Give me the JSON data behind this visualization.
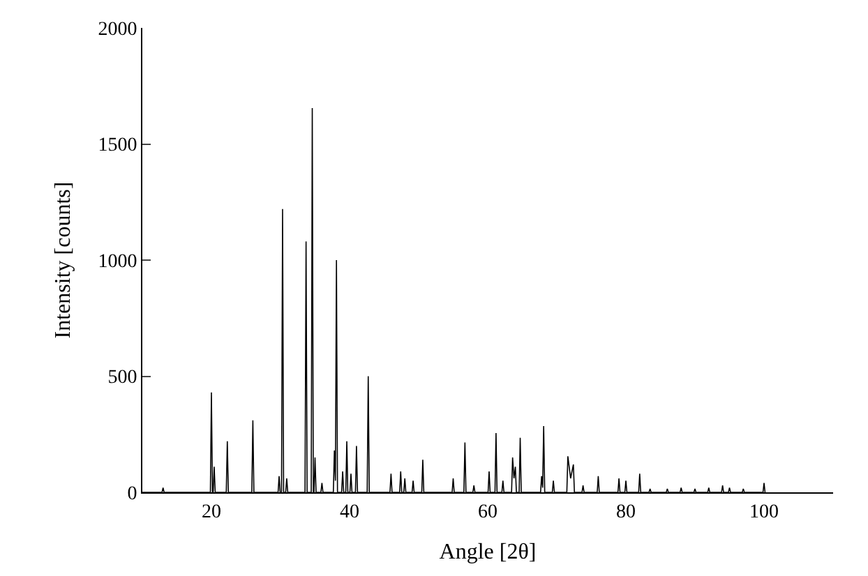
{
  "chart_data": {
    "type": "line",
    "xlabel": "Angle [2θ]",
    "ylabel": "Intensity [counts]",
    "x": [
      10,
      12.85,
      13,
      13.15,
      19.85,
      20,
      20.15,
      20.25,
      20.4,
      20.55,
      22.15,
      22.3,
      22.45,
      25.85,
      26,
      26.15,
      29.65,
      29.8,
      29.95,
      30.15,
      30.3,
      30.45,
      30.75,
      30.9,
      31.05,
      33.55,
      33.7,
      33.85,
      34.45,
      34.6,
      34.75,
      34.85,
      35,
      35.15,
      35.85,
      36,
      36.15,
      37.65,
      37.8,
      37.95,
      38.1,
      38.25,
      38.85,
      39,
      39.15,
      39.45,
      39.6,
      39.75,
      40.05,
      40.2,
      40.35,
      40.85,
      41,
      41.15,
      42.55,
      42.7,
      42.85,
      45.85,
      46,
      46.15,
      47.25,
      47.4,
      47.55,
      47.85,
      48,
      48.15,
      49.05,
      49.2,
      49.35,
      50.45,
      50.6,
      50.75,
      54.85,
      55,
      55.15,
      56.55,
      56.7,
      56.85,
      57.85,
      58,
      58.15,
      60.05,
      60.2,
      60.35,
      61.05,
      61.2,
      61.35,
      62.05,
      62.2,
      62.35,
      63.45,
      63.6,
      63.8,
      64,
      64.15,
      64.55,
      64.7,
      64.85,
      67.65,
      67.8,
      67.95,
      68.1,
      68.25,
      69.35,
      69.5,
      69.65,
      71.45,
      71.6,
      72.0,
      72.4,
      72.55,
      73.65,
      73.8,
      73.95,
      75.85,
      76,
      76.15,
      78.85,
      79,
      79.15,
      79.85,
      80,
      80.15,
      81.85,
      82,
      82.15,
      83.35,
      83.5,
      83.65,
      85.85,
      86,
      86.15,
      87.85,
      88,
      88.15,
      89.85,
      90,
      90.15,
      91.85,
      92,
      92.15,
      93.85,
      94,
      94.15,
      94.85,
      95,
      95.15,
      96.85,
      97,
      97.15,
      99.85,
      100,
      100.15
    ],
    "series": [
      {
        "color": "#000000",
        "values": [
          0,
          0,
          20,
          0,
          0,
          430,
          0,
          0,
          110,
          0,
          0,
          220,
          0,
          0,
          310,
          0,
          0,
          70,
          0,
          0,
          1220,
          0,
          0,
          60,
          0,
          0,
          1080,
          0,
          0,
          1655,
          0,
          0,
          150,
          0,
          0,
          40,
          0,
          0,
          180,
          50,
          1000,
          0,
          0,
          90,
          0,
          0,
          220,
          0,
          0,
          80,
          0,
          0,
          200,
          0,
          0,
          500,
          0,
          0,
          80,
          0,
          0,
          90,
          0,
          0,
          60,
          0,
          0,
          50,
          0,
          0,
          140,
          0,
          0,
          60,
          0,
          0,
          215,
          0,
          0,
          30,
          0,
          0,
          90,
          0,
          0,
          255,
          0,
          0,
          50,
          0,
          0,
          150,
          60,
          110,
          0,
          0,
          235,
          0,
          0,
          70,
          20,
          285,
          0,
          0,
          50,
          0,
          0,
          155,
          60,
          120,
          0,
          0,
          30,
          0,
          0,
          70,
          0,
          0,
          60,
          0,
          0,
          50,
          0,
          0,
          80,
          0,
          0,
          15,
          0,
          0,
          15,
          0,
          0,
          20,
          0,
          0,
          15,
          0,
          0,
          20,
          0,
          0,
          30,
          0,
          0,
          20,
          0,
          0,
          15,
          0,
          0,
          40,
          0
        ]
      }
    ],
    "xlim": [
      10,
      110
    ],
    "xticks": [
      20,
      40,
      60,
      80,
      100
    ],
    "ylim": [
      0,
      2000
    ],
    "yticks": [
      0,
      500,
      1000,
      1500,
      2000
    ],
    "line_style": "solid"
  }
}
